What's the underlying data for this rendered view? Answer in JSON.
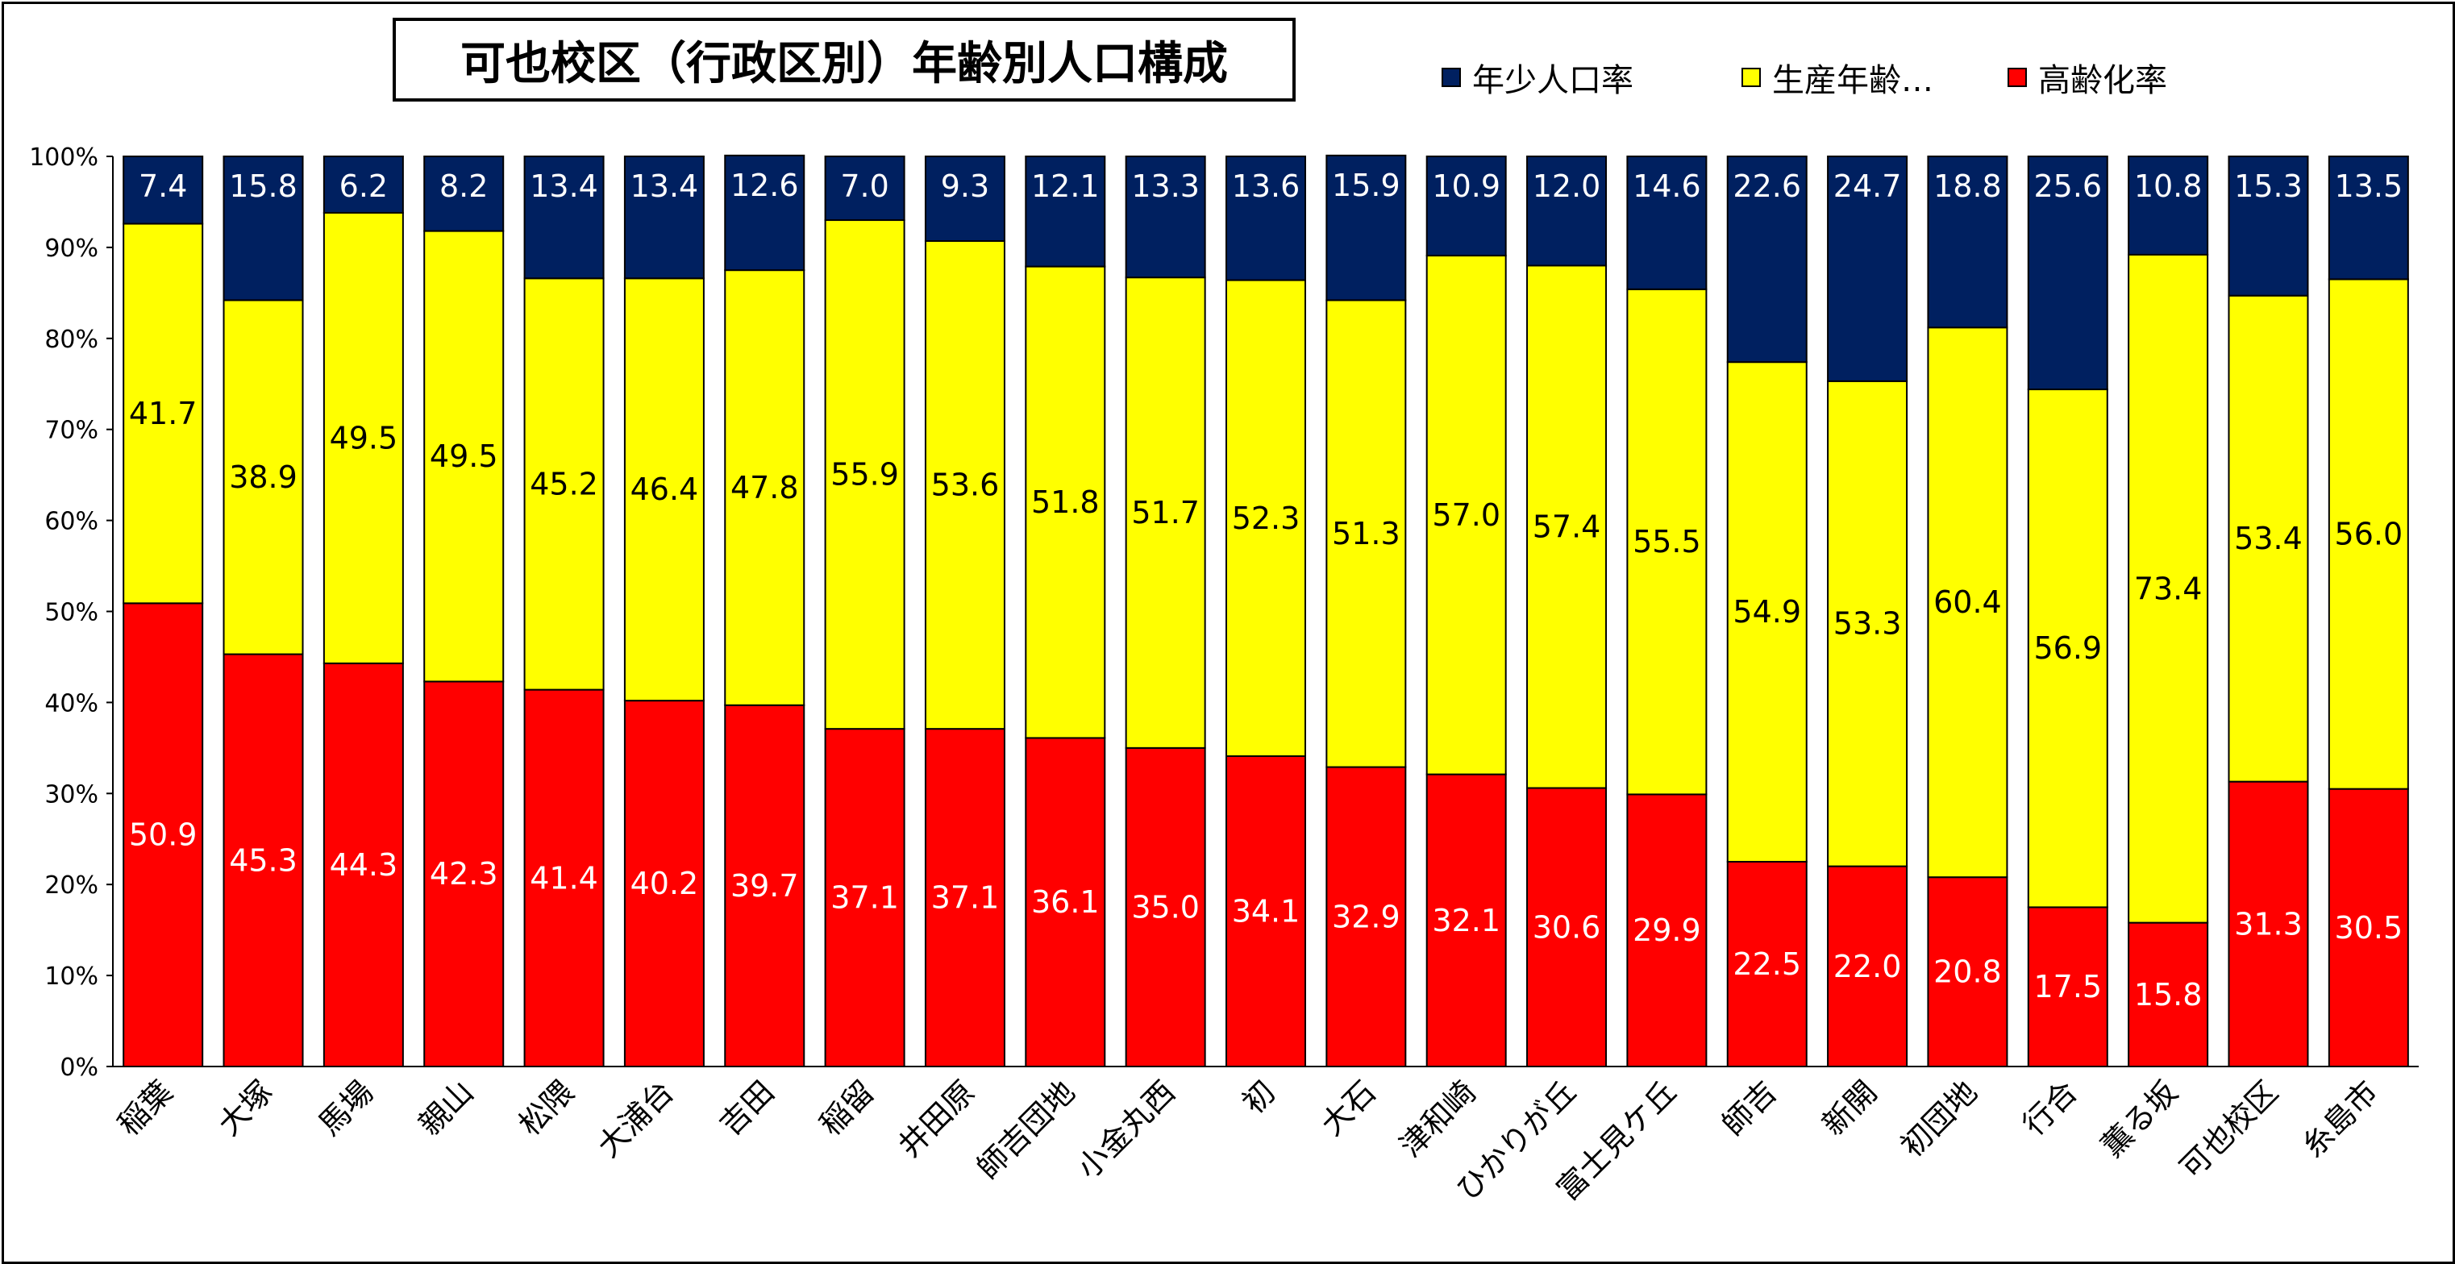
{
  "chart_data": {
    "type": "bar",
    "stacked": true,
    "percent": true,
    "title": "可也校区（行政区別）年齢別人口構成",
    "categories": [
      "稲葉",
      "大塚",
      "馬場",
      "親山",
      "松隈",
      "大浦台",
      "吉田",
      "稲留",
      "井田原",
      "師吉団地",
      "小金丸西",
      "初",
      "大石",
      "津和崎",
      "ひかりが丘",
      "富士見ケ丘",
      "師吉",
      "新開",
      "初団地",
      "行合",
      "薫る坂",
      "可也校区",
      "糸島市"
    ],
    "series": [
      {
        "name": "高齢化率",
        "color": "#ff0000",
        "label_color": "#ffffff",
        "values": [
          50.9,
          45.3,
          44.3,
          42.3,
          41.4,
          40.2,
          39.7,
          37.1,
          37.1,
          36.1,
          35.0,
          34.1,
          32.9,
          32.1,
          30.6,
          29.9,
          22.5,
          22.0,
          20.8,
          17.5,
          15.8,
          31.3,
          30.5
        ],
        "labels": [
          "50.9",
          "45.3",
          "44.3",
          "42.3",
          "41.4",
          "40.2",
          "39.7",
          "37.1",
          "37.1",
          "36.1",
          "35.0",
          "34.1",
          "32.9",
          "32.1",
          "30.6",
          "29.9",
          "22.5",
          "22.0",
          "20.8",
          "17.5",
          "15.8",
          "31.3",
          "30.5"
        ]
      },
      {
        "name": "生産年齢…",
        "color": "#ffff00",
        "label_color": "#000000",
        "values": [
          41.7,
          38.9,
          49.5,
          49.5,
          45.2,
          46.4,
          47.8,
          55.9,
          53.6,
          51.8,
          51.7,
          52.3,
          51.3,
          57.0,
          57.4,
          55.5,
          54.9,
          53.3,
          60.4,
          56.9,
          73.4,
          53.4,
          56.0
        ],
        "labels": [
          "41.7",
          "38.9",
          "49.5",
          "49.5",
          "45.2",
          "46.4",
          "47.8",
          "55.9",
          "53.6",
          "51.8",
          "51.7",
          "52.3",
          "51.3",
          "57.0",
          "57.4",
          "55.5",
          "54.9",
          "53.3",
          "60.4",
          "56.9",
          "73.4",
          "53.4",
          "56.0"
        ]
      },
      {
        "name": "年少人口率",
        "color": "#002060",
        "label_color": "#ffffff",
        "values": [
          7.4,
          15.8,
          6.2,
          8.2,
          13.4,
          13.4,
          12.6,
          7.0,
          9.3,
          12.1,
          13.3,
          13.6,
          15.9,
          10.9,
          12.0,
          14.6,
          22.6,
          24.7,
          18.8,
          25.6,
          10.8,
          15.3,
          13.5
        ],
        "labels": [
          "7.4",
          "15.8",
          "6.2",
          "8.2",
          "13.4",
          "13.4",
          "12.6",
          "7.0",
          "9.3",
          "12.1",
          "13.3",
          "13.6",
          "15.9",
          "10.9",
          "12.0",
          "14.6",
          "22.6",
          "24.7",
          "18.8",
          "25.6",
          "10.8",
          "15.3",
          "13.5"
        ]
      }
    ],
    "legend_order": [
      "年少人口率",
      "生産年齢…",
      "高齢化率"
    ],
    "ylim": [
      0,
      100
    ],
    "yticks": [
      "0%",
      "10%",
      "20%",
      "30%",
      "40%",
      "50%",
      "60%",
      "70%",
      "80%",
      "90%",
      "100%"
    ],
    "grid": false,
    "legend_position": "top"
  }
}
